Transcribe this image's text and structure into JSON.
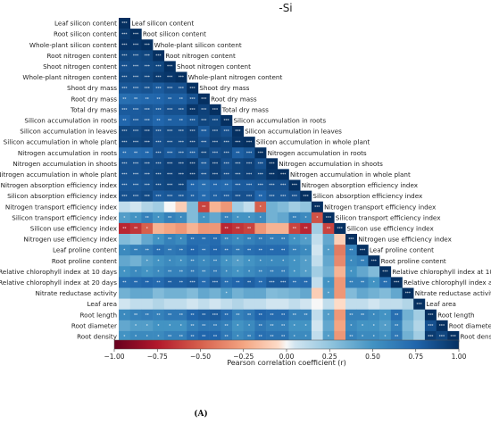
{
  "chart_data": {
    "type": "heatmap",
    "title": "-Si",
    "panel_label": "(A)",
    "colorbar": {
      "label": "Pearson correlation coefficient (r)",
      "range": [
        -1.0,
        1.0
      ],
      "ticks": [
        "−1.00",
        "−0.75",
        "−0.50",
        "−0.25",
        "0.00",
        "0.25",
        "0.50",
        "0.75",
        "1.00"
      ],
      "colormap": "RdBu"
    },
    "variables": [
      "Leaf silicon content",
      "Root silicon content",
      "Whole-plant silicon content",
      "Root nitrogen content",
      "Shoot nitrogen content",
      "Whole-plant nitrogen content",
      "Shoot dry mass",
      "Root dry mass",
      "Total dry mass",
      "Silicon accumulation in roots",
      "Silicon accumulation in leaves",
      "Silicon accumulation in whole plant",
      "Nitrogen accumulation in roots",
      "Nitrogen accumulation in shoots",
      "Nitrogen accumulation in whole plant",
      "Nitrogen absorption efficiency index",
      "Silicon absorption efficiency index",
      "Nitrogen transport efficiency index",
      "Silicon transport efficiency index",
      "Silicon use efficiency index",
      "Nitrogen use efficiency index",
      "Leaf proline content",
      "Root proline content",
      "Relative chlorophyll index at 10 days",
      "Relative chlorophyll index at 20 days",
      "Nitrate reductase activity",
      "Leaf area",
      "Root length",
      "Root diameter",
      "Root density"
    ],
    "matrix_lower": [
      [],
      [
        0.95
      ],
      [
        0.98,
        0.97
      ],
      [
        0.9,
        0.88,
        0.9
      ],
      [
        0.85,
        0.87,
        0.88,
        0.9
      ],
      [
        0.88,
        0.88,
        0.9,
        0.95,
        0.97
      ],
      [
        0.82,
        0.82,
        0.84,
        0.8,
        0.85,
        0.85
      ],
      [
        0.7,
        0.72,
        0.74,
        0.75,
        0.78,
        0.78,
        0.85
      ],
      [
        0.8,
        0.8,
        0.82,
        0.8,
        0.85,
        0.85,
        0.97,
        0.92
      ],
      [
        0.75,
        0.8,
        0.8,
        0.75,
        0.78,
        0.78,
        0.82,
        0.9,
        0.88
      ],
      [
        0.9,
        0.88,
        0.92,
        0.85,
        0.88,
        0.88,
        0.92,
        0.8,
        0.9,
        0.85
      ],
      [
        0.9,
        0.9,
        0.92,
        0.85,
        0.88,
        0.88,
        0.92,
        0.85,
        0.92,
        0.9,
        0.98
      ],
      [
        0.72,
        0.72,
        0.74,
        0.85,
        0.8,
        0.83,
        0.8,
        0.9,
        0.85,
        0.88,
        0.78,
        0.82
      ],
      [
        0.85,
        0.85,
        0.88,
        0.88,
        0.92,
        0.92,
        0.95,
        0.82,
        0.93,
        0.85,
        0.9,
        0.92,
        0.85
      ],
      [
        0.85,
        0.85,
        0.87,
        0.9,
        0.92,
        0.93,
        0.95,
        0.85,
        0.93,
        0.87,
        0.9,
        0.92,
        0.9,
        0.98
      ],
      [
        0.82,
        0.82,
        0.84,
        0.88,
        0.9,
        0.9,
        0.75,
        0.7,
        0.75,
        0.72,
        0.8,
        0.8,
        0.82,
        0.85,
        0.85
      ],
      [
        0.85,
        0.85,
        0.88,
        0.8,
        0.82,
        0.82,
        0.78,
        0.72,
        0.78,
        0.8,
        0.85,
        0.85,
        0.75,
        0.82,
        0.82,
        0.85
      ],
      [
        0.1,
        0.05,
        0.15,
        0.2,
        0.0,
        -0.1,
        0.3,
        -0.6,
        -0.2,
        -0.3,
        0.2,
        0.1,
        -0.5,
        0.35,
        0.3,
        0.2,
        0.25
      ],
      [
        0.45,
        0.5,
        0.6,
        0.5,
        0.6,
        0.55,
        0.3,
        0.5,
        0.4,
        0.6,
        0.5,
        0.5,
        0.55,
        0.35,
        0.4,
        0.6,
        0.55,
        -0.55
      ],
      [
        -0.7,
        -0.65,
        -0.5,
        -0.2,
        -0.25,
        -0.3,
        -0.2,
        -0.3,
        -0.3,
        -0.7,
        -0.65,
        -0.6,
        -0.3,
        -0.2,
        -0.2,
        -0.6,
        -0.7,
        0.2,
        -0.6
      ],
      [
        0.3,
        0.25,
        0.4,
        0.5,
        0.6,
        0.55,
        0.7,
        0.7,
        0.72,
        0.6,
        0.55,
        0.6,
        0.65,
        0.62,
        0.62,
        0.5,
        0.45,
        0.1,
        0.4,
        -0.1
      ],
      [
        0.55,
        0.6,
        0.62,
        0.7,
        0.65,
        0.68,
        0.75,
        0.7,
        0.75,
        0.7,
        0.65,
        0.7,
        0.72,
        0.72,
        0.72,
        0.6,
        0.55,
        0.05,
        0.45,
        -0.4,
        0.6
      ],
      [
        0.4,
        0.35,
        0.45,
        0.5,
        0.55,
        0.52,
        0.6,
        0.55,
        0.6,
        0.5,
        0.45,
        0.5,
        0.55,
        0.55,
        0.55,
        0.5,
        0.45,
        0.1,
        0.4,
        -0.35,
        0.55,
        0.6
      ],
      [
        0.5,
        0.55,
        0.5,
        0.55,
        0.6,
        0.6,
        0.65,
        0.6,
        0.65,
        0.55,
        0.5,
        0.55,
        0.6,
        0.62,
        0.62,
        0.5,
        0.45,
        0.2,
        0.35,
        -0.2,
        0.5,
        0.4,
        0.3
      ],
      [
        0.7,
        0.72,
        0.75,
        0.72,
        0.78,
        0.78,
        0.8,
        0.72,
        0.8,
        0.7,
        0.75,
        0.78,
        0.72,
        0.8,
        0.8,
        0.7,
        0.72,
        0.1,
        0.5,
        -0.3,
        0.6,
        0.6,
        0.5,
        0.7
      ],
      [
        0.35,
        0.4,
        0.4,
        0.3,
        0.35,
        0.35,
        0.3,
        0.4,
        0.35,
        0.45,
        0.35,
        0.4,
        0.4,
        0.3,
        0.32,
        0.35,
        0.4,
        -0.1,
        0.45,
        -0.3,
        0.3,
        0.4,
        0.35,
        0.3,
        0.4
      ],
      [
        0.05,
        0.1,
        0.1,
        0.15,
        0.1,
        0.1,
        0.05,
        0.1,
        0.05,
        0.1,
        0.15,
        0.1,
        0.1,
        0.05,
        0.05,
        0.1,
        0.05,
        0.0,
        0.1,
        -0.05,
        0.1,
        0.1,
        0.05,
        0.1,
        0.1,
        0.15
      ],
      [
        0.55,
        0.6,
        0.62,
        0.6,
        0.65,
        0.65,
        0.75,
        0.78,
        0.8,
        0.72,
        0.6,
        0.65,
        0.75,
        0.72,
        0.72,
        0.6,
        0.6,
        0.1,
        0.45,
        -0.3,
        0.6,
        0.6,
        0.55,
        0.5,
        0.7,
        0.35,
        0.2
      ],
      [
        0.4,
        0.45,
        0.45,
        0.5,
        0.5,
        0.5,
        0.6,
        0.65,
        0.65,
        0.6,
        0.5,
        0.55,
        0.65,
        0.6,
        0.6,
        0.5,
        0.5,
        0.05,
        0.4,
        -0.25,
        0.55,
        0.5,
        0.5,
        0.45,
        0.6,
        0.3,
        0.15,
        0.85
      ],
      [
        0.5,
        0.55,
        0.55,
        0.55,
        0.6,
        0.6,
        0.7,
        0.75,
        0.75,
        0.65,
        0.55,
        0.6,
        0.7,
        0.68,
        0.68,
        0.55,
        0.55,
        0.1,
        0.45,
        -0.3,
        0.6,
        0.55,
        0.55,
        0.5,
        0.65,
        0.35,
        0.2,
        0.95,
        0.9
      ]
    ]
  }
}
